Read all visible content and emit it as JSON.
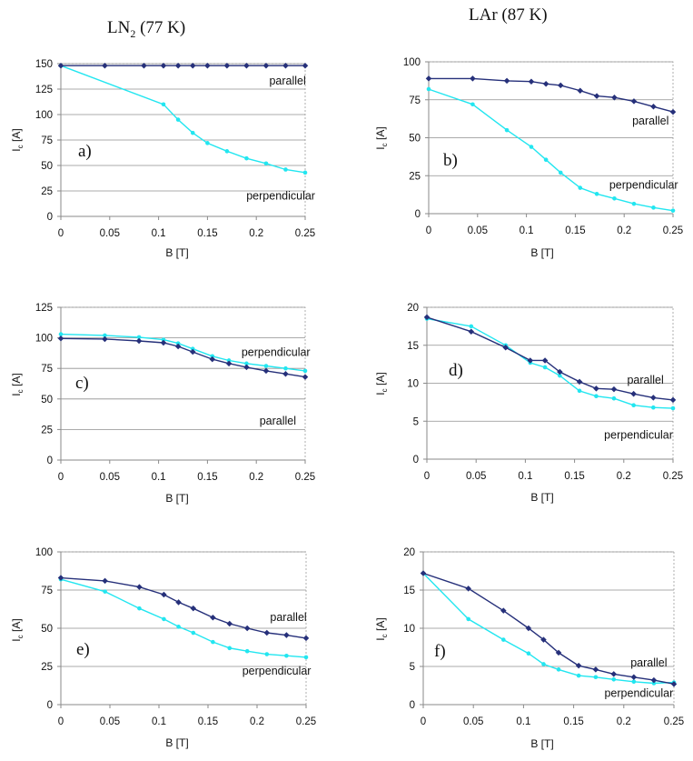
{
  "titles": {
    "ln2": {
      "main": "LN",
      "sub": "2",
      "rest": " (77 K)"
    },
    "lar": "LAr (87 K)"
  },
  "colors": {
    "parallel": "#26307a",
    "perpendicular": "#22e6f0",
    "grid": "#8f8f8f"
  },
  "chart_data": [
    {
      "type": "line",
      "panel": "a)",
      "xlabel": "B [T]",
      "ylabel": "Ic [A]",
      "xlim": [
        0,
        0.25
      ],
      "ylim": [
        0,
        150
      ],
      "xticks": [
        "0",
        "0.05",
        "0.1",
        "0.15",
        "0.2",
        "0.25"
      ],
      "yticks": [
        "0",
        "25",
        "50",
        "75",
        "100",
        "125",
        "150"
      ],
      "series": [
        {
          "name": "parallel",
          "x": [
            0,
            0.045,
            0.085,
            0.105,
            0.12,
            0.135,
            0.15,
            0.17,
            0.19,
            0.21,
            0.23,
            0.25
          ],
          "values": [
            148,
            148,
            148,
            148,
            148,
            148,
            148,
            148,
            148,
            148,
            148,
            148
          ]
        },
        {
          "name": "perpendicular",
          "x": [
            0,
            0.105,
            0.12,
            0.135,
            0.15,
            0.17,
            0.19,
            0.21,
            0.23,
            0.25
          ],
          "values": [
            148,
            110,
            95,
            82,
            72,
            64,
            57,
            52,
            46,
            43
          ]
        }
      ],
      "annotations": [
        {
          "text": "parallel",
          "x": 0.232,
          "y": 133
        },
        {
          "text": "perpendicular",
          "x": 0.225,
          "y": 20
        }
      ]
    },
    {
      "type": "line",
      "panel": "b)",
      "xlabel": "B [T]",
      "ylabel": "Ic [A]",
      "xlim": [
        0,
        0.25
      ],
      "ylim": [
        0,
        100
      ],
      "xticks": [
        "0",
        "0.05",
        "0.1",
        "0.15",
        "0.2",
        "0.25"
      ],
      "yticks": [
        "0",
        "25",
        "50",
        "75",
        "100"
      ],
      "series": [
        {
          "name": "parallel",
          "x": [
            0,
            0.045,
            0.08,
            0.105,
            0.12,
            0.135,
            0.155,
            0.172,
            0.19,
            0.21,
            0.23,
            0.25
          ],
          "values": [
            89,
            89,
            87.5,
            87,
            85.5,
            84.5,
            81,
            77.5,
            76.5,
            74,
            70.5,
            67
          ]
        },
        {
          "name": "perpendicular",
          "x": [
            0,
            0.045,
            0.08,
            0.105,
            0.12,
            0.135,
            0.155,
            0.172,
            0.19,
            0.21,
            0.23,
            0.25
          ],
          "values": [
            82,
            72,
            55,
            44,
            35.5,
            27,
            17,
            13,
            10,
            6.5,
            4,
            2
          ]
        }
      ],
      "annotations": [
        {
          "text": "parallel",
          "x": 0.227,
          "y": 61
        },
        {
          "text": "perpendicular",
          "x": 0.22,
          "y": 19
        }
      ]
    },
    {
      "type": "line",
      "panel": "c)",
      "xlabel": "B [T]",
      "ylabel": "Ic [A]",
      "xlim": [
        0,
        0.25
      ],
      "ylim": [
        0,
        125
      ],
      "xticks": [
        "0",
        "0.05",
        "0.1",
        "0.15",
        "0.2",
        "0.25"
      ],
      "yticks": [
        "0",
        "25",
        "50",
        "75",
        "100",
        "125"
      ],
      "series": [
        {
          "name": "parallel",
          "x": [
            0,
            0.045,
            0.08,
            0.105,
            0.12,
            0.135,
            0.155,
            0.172,
            0.19,
            0.21,
            0.23,
            0.25
          ],
          "values": [
            99.5,
            99,
            97.5,
            96,
            93,
            88.5,
            82.5,
            79,
            76,
            73,
            70.5,
            68
          ]
        },
        {
          "name": "perpendicular",
          "x": [
            0,
            0.045,
            0.08,
            0.105,
            0.12,
            0.135,
            0.155,
            0.172,
            0.19,
            0.21,
            0.23,
            0.25
          ],
          "values": [
            103,
            102,
            100.5,
            98.5,
            95.5,
            91,
            85,
            81.5,
            79,
            77,
            75,
            73
          ]
        }
      ],
      "annotations": [
        {
          "text": "perpendicular",
          "x": 0.22,
          "y": 88
        },
        {
          "text": "parallel",
          "x": 0.222,
          "y": 32
        }
      ]
    },
    {
      "type": "line",
      "panel": "d)",
      "xlabel": "B [T]",
      "ylabel": "Ic [A]",
      "xlim": [
        0,
        0.25
      ],
      "ylim": [
        0,
        20
      ],
      "xticks": [
        "0",
        "0.05",
        "0.1",
        "0.15",
        "0.2",
        "0.25"
      ],
      "yticks": [
        "0",
        "5",
        "10",
        "15",
        "20"
      ],
      "series": [
        {
          "name": "parallel",
          "x": [
            0,
            0.045,
            0.08,
            0.105,
            0.12,
            0.135,
            0.155,
            0.172,
            0.19,
            0.21,
            0.23,
            0.25
          ],
          "values": [
            18.7,
            16.8,
            14.7,
            13,
            13,
            11.5,
            10.2,
            9.3,
            9.2,
            8.6,
            8.1,
            7.8
          ]
        },
        {
          "name": "perpendicular",
          "x": [
            0,
            0.045,
            0.08,
            0.105,
            0.12,
            0.135,
            0.155,
            0.172,
            0.19,
            0.21,
            0.23,
            0.25
          ],
          "values": [
            18.5,
            17.5,
            15,
            12.7,
            12.1,
            11,
            9,
            8.3,
            8,
            7.1,
            6.8,
            6.7
          ]
        }
      ],
      "annotations": [
        {
          "text": "parallel",
          "x": 0.222,
          "y": 10.4
        },
        {
          "text": "perpendicular",
          "x": 0.215,
          "y": 3.2
        }
      ]
    },
    {
      "type": "line",
      "panel": "e)",
      "xlabel": "B [T]",
      "ylabel": "Ic [A]",
      "xlim": [
        0,
        0.25
      ],
      "ylim": [
        0,
        100
      ],
      "xticks": [
        "0",
        "0.05",
        "0.1",
        "0.15",
        "0.2",
        "0.25"
      ],
      "yticks": [
        "0",
        "25",
        "50",
        "75",
        "100"
      ],
      "series": [
        {
          "name": "parallel",
          "x": [
            0,
            0.045,
            0.08,
            0.105,
            0.12,
            0.135,
            0.155,
            0.172,
            0.19,
            0.21,
            0.23,
            0.25
          ],
          "values": [
            83,
            81,
            77,
            72,
            67,
            63,
            57,
            53,
            50,
            47,
            45.5,
            43.5
          ]
        },
        {
          "name": "perpendicular",
          "x": [
            0,
            0.045,
            0.08,
            0.105,
            0.12,
            0.135,
            0.155,
            0.172,
            0.19,
            0.21,
            0.23,
            0.25
          ],
          "values": [
            82,
            74,
            63,
            56,
            51,
            47,
            41,
            37,
            35,
            33,
            32,
            31
          ]
        }
      ],
      "annotations": [
        {
          "text": "parallel",
          "x": 0.232,
          "y": 57
        },
        {
          "text": "perpendicular",
          "x": 0.22,
          "y": 22
        }
      ]
    },
    {
      "type": "line",
      "panel": "f)",
      "xlabel": "B [T]",
      "ylabel": "Ic [A]",
      "xlim": [
        0,
        0.25
      ],
      "ylim": [
        0,
        20
      ],
      "xticks": [
        "0",
        "0.05",
        "0.1",
        "0.15",
        "0.2",
        "0.25"
      ],
      "yticks": [
        "0",
        "5",
        "10",
        "15",
        "20"
      ],
      "series": [
        {
          "name": "parallel",
          "x": [
            0,
            0.045,
            0.08,
            0.105,
            0.12,
            0.135,
            0.155,
            0.172,
            0.19,
            0.21,
            0.23,
            0.25
          ],
          "values": [
            17.2,
            15.2,
            12.3,
            10,
            8.5,
            6.8,
            5.1,
            4.6,
            4,
            3.6,
            3.2,
            2.7
          ]
        },
        {
          "name": "perpendicular",
          "x": [
            0,
            0.045,
            0.08,
            0.105,
            0.12,
            0.135,
            0.155,
            0.172,
            0.19,
            0.21,
            0.23,
            0.25
          ],
          "values": [
            17.2,
            11.2,
            8.5,
            6.7,
            5.3,
            4.6,
            3.8,
            3.6,
            3.3,
            3,
            2.8,
            2.9
          ]
        }
      ],
      "annotations": [
        {
          "text": "parallel",
          "x": 0.225,
          "y": 5.5
        },
        {
          "text": "perpendicular",
          "x": 0.215,
          "y": 1.5
        }
      ]
    }
  ]
}
